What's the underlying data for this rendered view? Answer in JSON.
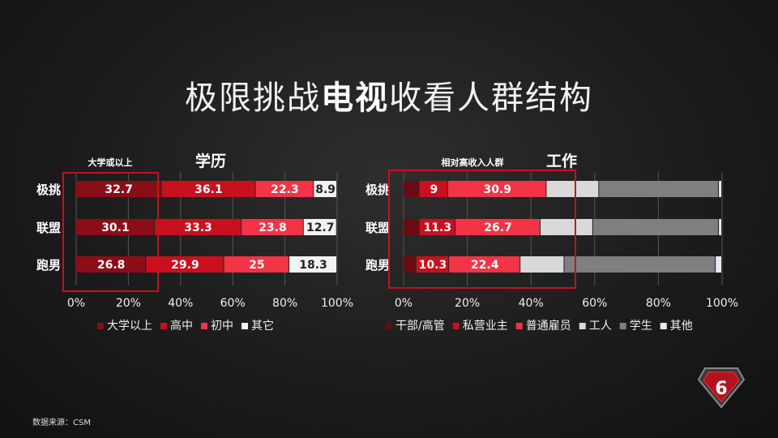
{
  "title": {
    "part1": "极限挑战",
    "part2": "电视",
    "part3": "收看人群结构"
  },
  "source": "数据来源：CSM",
  "chart_data": [
    {
      "type": "bar",
      "stacked": true,
      "orientation": "horizontal",
      "title": "学历",
      "annotation": "大学或以上",
      "categories": [
        "极挑",
        "联盟",
        "跑男"
      ],
      "series": [
        {
          "name": "大学以上",
          "color": "#8b0d18",
          "values": [
            32.7,
            30.1,
            26.8
          ]
        },
        {
          "name": "高中",
          "color": "#c8101e",
          "values": [
            36.1,
            33.3,
            29.9
          ]
        },
        {
          "name": "初中",
          "color": "#f23446",
          "values": [
            22.3,
            23.8,
            25
          ]
        },
        {
          "name": "其它",
          "color": "#f2f2f2",
          "values": [
            8.9,
            12.7,
            18.3
          ]
        }
      ],
      "show_labels": [
        true,
        true,
        true,
        true
      ],
      "xlim": [
        0,
        100
      ],
      "xticks": [
        "0%",
        "20%",
        "40%",
        "60%",
        "80%",
        "100%"
      ],
      "grid": true,
      "legend": "bottom"
    },
    {
      "type": "bar",
      "stacked": true,
      "orientation": "horizontal",
      "title": "工作",
      "annotation": "相对高收入人群",
      "categories": [
        "极挑",
        "联盟",
        "跑男"
      ],
      "series": [
        {
          "name": "干部/高管",
          "color": "#6a0a12",
          "values": [
            5,
            5,
            4
          ]
        },
        {
          "name": "私营业主",
          "color": "#c8101e",
          "values": [
            9,
            11.3,
            10.3
          ]
        },
        {
          "name": "普通雇员",
          "color": "#f23446",
          "values": [
            30.9,
            26.7,
            22.4
          ]
        },
        {
          "name": "工人",
          "color": "#d9d9d9",
          "values": [
            16.5,
            16.5,
            13.8
          ]
        },
        {
          "name": "学生",
          "color": "#7f7f7f",
          "values": [
            37.6,
            39.5,
            47.5
          ]
        },
        {
          "name": "其他",
          "color": "#ece6f5",
          "values": [
            1,
            1,
            2
          ]
        }
      ],
      "show_labels": [
        false,
        true,
        true,
        false,
        false,
        false
      ],
      "xlim": [
        0,
        100
      ],
      "xticks": [
        "0%",
        "20%",
        "40%",
        "60%",
        "80%",
        "100%"
      ],
      "grid": true,
      "legend": "bottom"
    }
  ]
}
